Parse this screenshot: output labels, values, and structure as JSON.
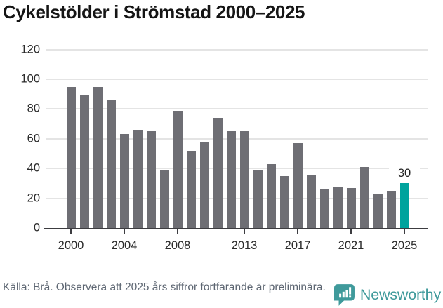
{
  "title": "Cykelstölder i Strömstad 2000–2025",
  "chart_data": {
    "type": "bar",
    "title": "Cykelstölder i Strömstad 2000–2025",
    "x": [
      2000,
      2001,
      2002,
      2003,
      2004,
      2005,
      2006,
      2007,
      2008,
      2009,
      2010,
      2011,
      2012,
      2013,
      2014,
      2015,
      2016,
      2017,
      2018,
      2019,
      2020,
      2021,
      2022,
      2023,
      2024,
      2025
    ],
    "values": [
      95,
      89,
      95,
      86,
      63,
      66,
      65,
      39,
      79,
      52,
      58,
      74,
      65,
      65,
      39,
      43,
      35,
      57,
      36,
      26,
      28,
      27,
      41,
      23,
      25,
      30
    ],
    "x_tick_labels": [
      "2000",
      "2004",
      "2008",
      "2013",
      "2017",
      "2021",
      "2025"
    ],
    "x_tick_years": [
      2000,
      2004,
      2008,
      2013,
      2017,
      2021,
      2025
    ],
    "y_ticks": [
      0,
      20,
      40,
      60,
      80,
      100,
      120
    ],
    "ylim": [
      0,
      120
    ],
    "grid": "horizontal",
    "legend": "none",
    "highlight": {
      "year": 2025,
      "value": 30,
      "label": "30"
    },
    "colors": {
      "bar": "#6e6e74",
      "highlight": "#00a39d",
      "gridline": "#e4e4e4",
      "axis": "#3c3c40",
      "tick_label": "#2b2b2b",
      "data_label": "#222222"
    }
  },
  "footer": {
    "source_note": "Källa: Brå. Observera att 2025 års siffror fortfarande är preliminära."
  },
  "logo": {
    "name": "Newsworthy",
    "wordmark": "Newsworthy",
    "color": "#3f9a9b",
    "icon": "newsworthy-speech-bubble-bar-chart-icon"
  }
}
